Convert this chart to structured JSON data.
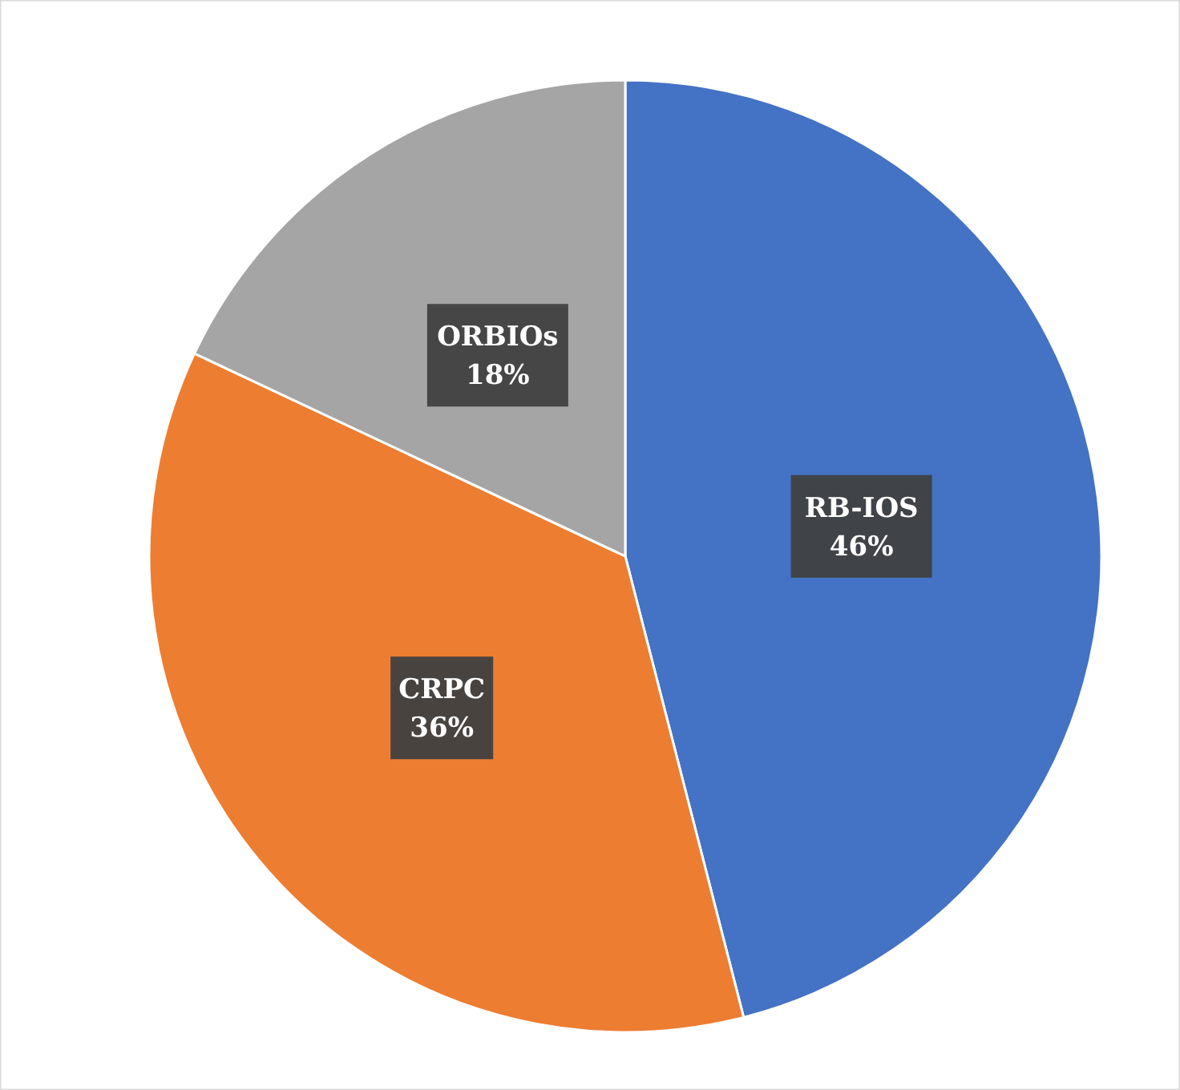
{
  "chart_data": {
    "type": "pie",
    "categories": [
      "RB-IOS",
      "CRPC",
      "ORBIOs"
    ],
    "values": [
      46,
      36,
      18
    ],
    "colors": [
      "#4472c4",
      "#ed7d31",
      "#a5a5a5"
    ],
    "value_labels": [
      "46%",
      "36%",
      "18%"
    ]
  }
}
